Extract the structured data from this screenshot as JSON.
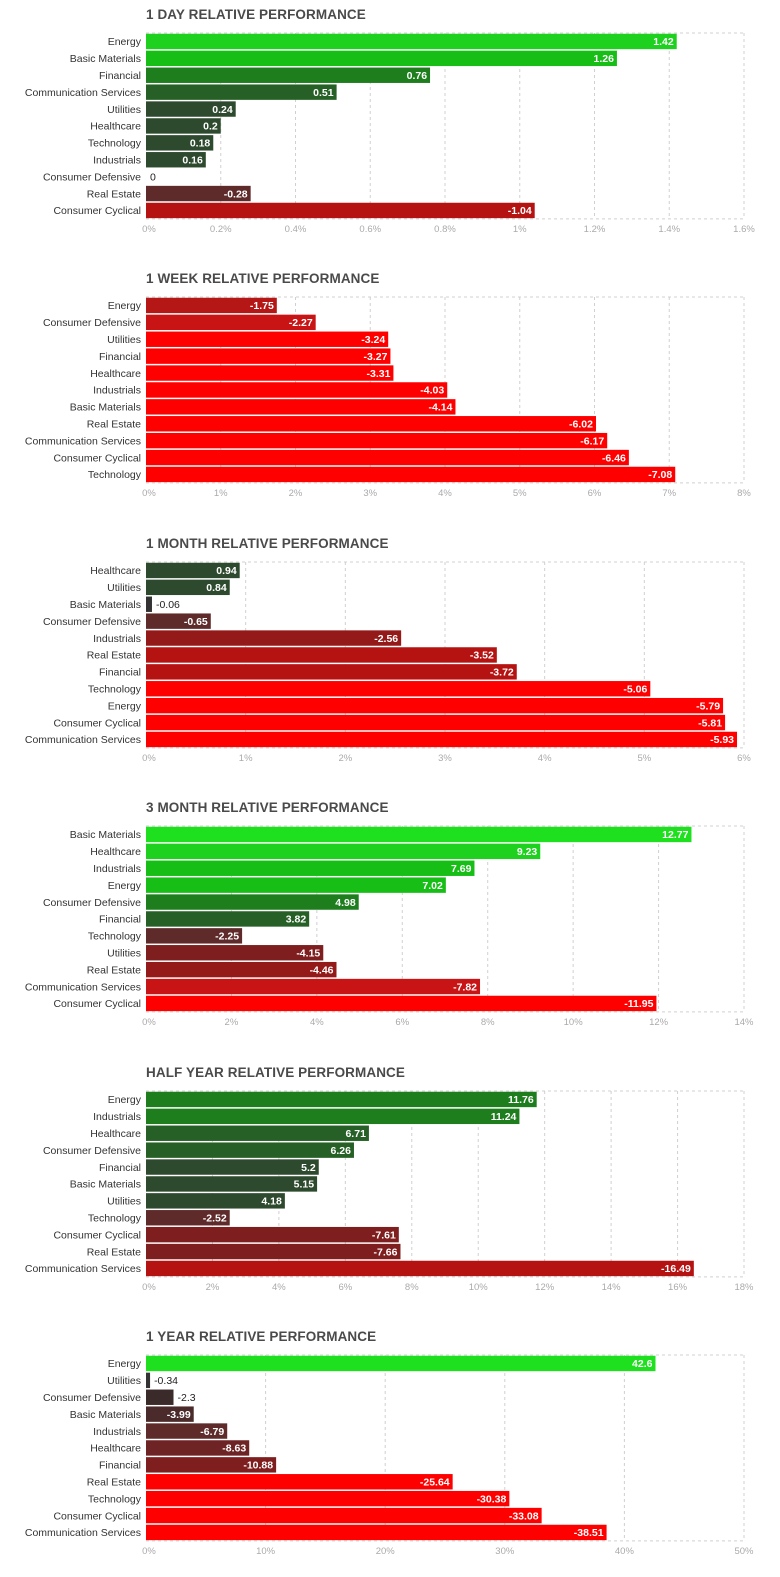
{
  "chart_data": [
    {
      "type": "bar",
      "title": "1 DAY RELATIVE PERFORMANCE",
      "categories": [
        "Energy",
        "Basic Materials",
        "Financial",
        "Communication Services",
        "Utilities",
        "Healthcare",
        "Technology",
        "Industrials",
        "Consumer Defensive",
        "Real Estate",
        "Consumer Cyclical"
      ],
      "values": [
        1.42,
        1.26,
        0.76,
        0.51,
        0.24,
        0.2,
        0.18,
        0.16,
        0,
        -0.28,
        -1.04
      ],
      "value_labels": [
        "1.42",
        "1.26",
        "0.76",
        "0.51",
        "0.24",
        "0.2",
        "0.18",
        "0.16",
        "0",
        "-0.28",
        "-1.04"
      ],
      "colors": [
        "#1fd11f",
        "#16be16",
        "#1e7e1e",
        "#266026",
        "#2e4a2e",
        "#2e4a2e",
        "#2e4a2e",
        "#2e4a2e",
        "#333333",
        "#5e2a2a",
        "#b51212"
      ],
      "xlim": [
        0,
        1.6
      ],
      "ticks": [
        "0%",
        "0.2%",
        "0.4%",
        "0.6%",
        "0.8%",
        "1%",
        "1.2%",
        "1.4%",
        "1.6%"
      ],
      "grid": true
    },
    {
      "type": "bar",
      "title": "1 WEEK RELATIVE PERFORMANCE",
      "categories": [
        "Energy",
        "Consumer Defensive",
        "Utilities",
        "Financial",
        "Healthcare",
        "Industrials",
        "Basic Materials",
        "Real Estate",
        "Communication Services",
        "Consumer Cyclical",
        "Technology"
      ],
      "values": [
        -1.75,
        -2.27,
        -3.24,
        -3.27,
        -3.31,
        -4.03,
        -4.14,
        -6.02,
        -6.17,
        -6.46,
        -7.08
      ],
      "value_labels": [
        "-1.75",
        "-2.27",
        "-3.24",
        "-3.27",
        "-3.31",
        "-4.03",
        "-4.14",
        "-6.02",
        "-6.17",
        "-6.46",
        "-7.08"
      ],
      "colors": [
        "#b51616",
        "#c81414",
        "#ff0000",
        "#ff0000",
        "#ff0000",
        "#ff0000",
        "#ff0000",
        "#ff0000",
        "#ff0000",
        "#ff0000",
        "#ff0000"
      ],
      "xlim": [
        0,
        8
      ],
      "ticks": [
        "0%",
        "1%",
        "2%",
        "3%",
        "4%",
        "5%",
        "6%",
        "7%",
        "8%"
      ],
      "grid": true
    },
    {
      "type": "bar",
      "title": "1 MONTH RELATIVE PERFORMANCE",
      "categories": [
        "Healthcare",
        "Utilities",
        "Basic Materials",
        "Consumer Defensive",
        "Industrials",
        "Real Estate",
        "Financial",
        "Technology",
        "Energy",
        "Consumer Cyclical",
        "Communication Services"
      ],
      "values": [
        0.94,
        0.84,
        -0.06,
        -0.65,
        -2.56,
        -3.52,
        -3.72,
        -5.06,
        -5.79,
        -5.81,
        -5.93
      ],
      "value_labels": [
        "0.94",
        "0.84",
        "-0.06",
        "-0.65",
        "-2.56",
        "-3.52",
        "-3.72",
        "-5.06",
        "-5.79",
        "-5.81",
        "-5.93"
      ],
      "colors": [
        "#2e4a2e",
        "#2e4a2e",
        "#333333",
        "#5e2a2a",
        "#941a1a",
        "#b51212",
        "#b51212",
        "#ff0000",
        "#ff0000",
        "#ff0000",
        "#ff0000"
      ],
      "xlim": [
        0,
        6
      ],
      "ticks": [
        "0%",
        "1%",
        "2%",
        "3%",
        "4%",
        "5%",
        "6%"
      ],
      "grid": true
    },
    {
      "type": "bar",
      "title": "3 MONTH RELATIVE PERFORMANCE",
      "categories": [
        "Basic Materials",
        "Healthcare",
        "Industrials",
        "Energy",
        "Consumer Defensive",
        "Financial",
        "Technology",
        "Utilities",
        "Real Estate",
        "Communication Services",
        "Consumer Cyclical"
      ],
      "values": [
        12.77,
        9.23,
        7.69,
        7.02,
        4.98,
        3.82,
        -2.25,
        -4.15,
        -4.46,
        -7.82,
        -11.95
      ],
      "value_labels": [
        "12.77",
        "9.23",
        "7.69",
        "7.02",
        "4.98",
        "3.82",
        "-2.25",
        "-4.15",
        "-4.46",
        "-7.82",
        "-11.95"
      ],
      "colors": [
        "#1fe01f",
        "#1fd11f",
        "#16be16",
        "#16be16",
        "#1e7e1e",
        "#266026",
        "#5e2a2a",
        "#7e1e1e",
        "#941a1a",
        "#c81414",
        "#ff0000"
      ],
      "xlim": [
        0,
        14
      ],
      "ticks": [
        "0%",
        "2%",
        "4%",
        "6%",
        "8%",
        "10%",
        "12%",
        "14%"
      ],
      "grid": true
    },
    {
      "type": "bar",
      "title": "HALF YEAR RELATIVE PERFORMANCE",
      "categories": [
        "Energy",
        "Industrials",
        "Healthcare",
        "Consumer Defensive",
        "Financial",
        "Basic Materials",
        "Utilities",
        "Technology",
        "Consumer Cyclical",
        "Real Estate",
        "Communication Services"
      ],
      "values": [
        11.76,
        11.24,
        6.71,
        6.26,
        5.2,
        5.15,
        4.18,
        -2.52,
        -7.61,
        -7.66,
        -16.49
      ],
      "value_labels": [
        "11.76",
        "11.24",
        "6.71",
        "6.26",
        "5.2",
        "5.15",
        "4.18",
        "-2.52",
        "-7.61",
        "-7.66",
        "-16.49"
      ],
      "colors": [
        "#1e7e1e",
        "#1e7e1e",
        "#266026",
        "#266026",
        "#2e4a2e",
        "#2e4a2e",
        "#2e4a2e",
        "#5e2a2a",
        "#7e1e1e",
        "#7e1e1e",
        "#b51212"
      ],
      "xlim": [
        0,
        18
      ],
      "ticks": [
        "0%",
        "2%",
        "4%",
        "6%",
        "8%",
        "10%",
        "12%",
        "14%",
        "16%",
        "18%"
      ],
      "grid": true
    },
    {
      "type": "bar",
      "title": "1 YEAR RELATIVE PERFORMANCE",
      "categories": [
        "Energy",
        "Utilities",
        "Consumer Defensive",
        "Basic Materials",
        "Industrials",
        "Healthcare",
        "Financial",
        "Real Estate",
        "Technology",
        "Consumer Cyclical",
        "Communication Services"
      ],
      "values": [
        42.6,
        -0.34,
        -2.3,
        -3.99,
        -6.79,
        -8.63,
        -10.88,
        -25.64,
        -30.38,
        -33.08,
        -38.51
      ],
      "value_labels": [
        "42.6",
        "-0.34",
        "-2.3",
        "-3.99",
        "-6.79",
        "-8.63",
        "-10.88",
        "-25.64",
        "-30.38",
        "-33.08",
        "-38.51"
      ],
      "colors": [
        "#1fe01f",
        "#333333",
        "#3a2a2a",
        "#4a2a2a",
        "#5e2a2a",
        "#6e2424",
        "#7e1e1e",
        "#ff0000",
        "#ff0000",
        "#ff0000",
        "#ff0000"
      ],
      "xlim": [
        0,
        50
      ],
      "ticks": [
        "0%",
        "10%",
        "20%",
        "30%",
        "40%",
        "50%"
      ],
      "grid": true
    }
  ]
}
